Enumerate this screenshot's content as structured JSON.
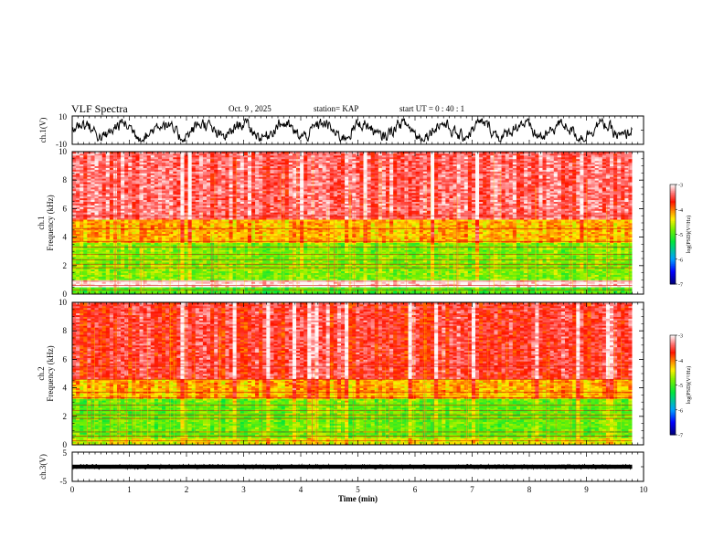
{
  "header": {
    "title": "VLF Spectra",
    "date": "Oct. 9 , 2025",
    "station": "station= KAP",
    "start": "start UT = 0 : 40 : 1"
  },
  "chart_data": [
    {
      "type": "line",
      "panel": "ch1-voltage",
      "ylabel": "ch.1(V)",
      "ylim": [
        -10,
        10
      ],
      "ytick_labels": [
        "10",
        "-10"
      ],
      "x_range_min": [
        0,
        9.8
      ],
      "description_values": "noisy waveform oscillating roughly between -5 and 5 V"
    },
    {
      "type": "heatmap",
      "panel": "ch1-spectrogram",
      "ylabel": "ch.1 Frequency (kHz)",
      "ylim": [
        0,
        10
      ],
      "ytick_labels": [
        "0",
        "2",
        "4",
        "6",
        "8",
        "10"
      ],
      "bands_khz": [
        {
          "from": 0,
          "to": 0.5,
          "level": -5
        },
        {
          "from": 0.5,
          "to": 1.0,
          "level": -3
        },
        {
          "from": 1.0,
          "to": 3.6,
          "level": -4.8
        },
        {
          "from": 3.6,
          "to": 5.2,
          "level": -4.2
        },
        {
          "from": 5.2,
          "to": 10,
          "level": -3.4
        }
      ],
      "colorbar": {
        "label": "log(PSD)(V²/Hz)",
        "range": [
          -7,
          -3
        ],
        "tick_labels": [
          "-3",
          "-4",
          "-5",
          "-6",
          "-7"
        ]
      }
    },
    {
      "type": "heatmap",
      "panel": "ch2-spectrogram",
      "ylabel": "ch.2 Frequency (kHz)",
      "ylim": [
        0,
        10
      ],
      "ytick_labels": [
        "0",
        "2",
        "4",
        "6",
        "8",
        "10"
      ],
      "bands_khz": [
        {
          "from": 0,
          "to": 0.5,
          "level": -4.5
        },
        {
          "from": 0.5,
          "to": 3.2,
          "level": -4.9
        },
        {
          "from": 3.2,
          "to": 4.6,
          "level": -4.2
        },
        {
          "from": 4.6,
          "to": 10,
          "level": -3.6
        }
      ],
      "colorbar": {
        "label": "log(PSD)(V²/Hz)",
        "range": [
          -7,
          -3
        ],
        "tick_labels": [
          "-3",
          "-4",
          "-5",
          "-6",
          "-7"
        ]
      }
    },
    {
      "type": "line",
      "panel": "ch3-voltage",
      "ylabel": "ch.3(V)",
      "ylim": [
        -5,
        5
      ],
      "ytick_labels": [
        "5",
        "-5"
      ],
      "constant_level": 0,
      "xlabel": "Time (min)",
      "xlim": [
        0,
        10
      ],
      "xtick_labels": [
        "0",
        "1",
        "2",
        "3",
        "4",
        "5",
        "6",
        "7",
        "8",
        "9",
        "10"
      ]
    }
  ],
  "colors": {
    "low": "#0000ff",
    "mid": "#00e000",
    "high": "#ff0000",
    "top": "#ffffff"
  }
}
